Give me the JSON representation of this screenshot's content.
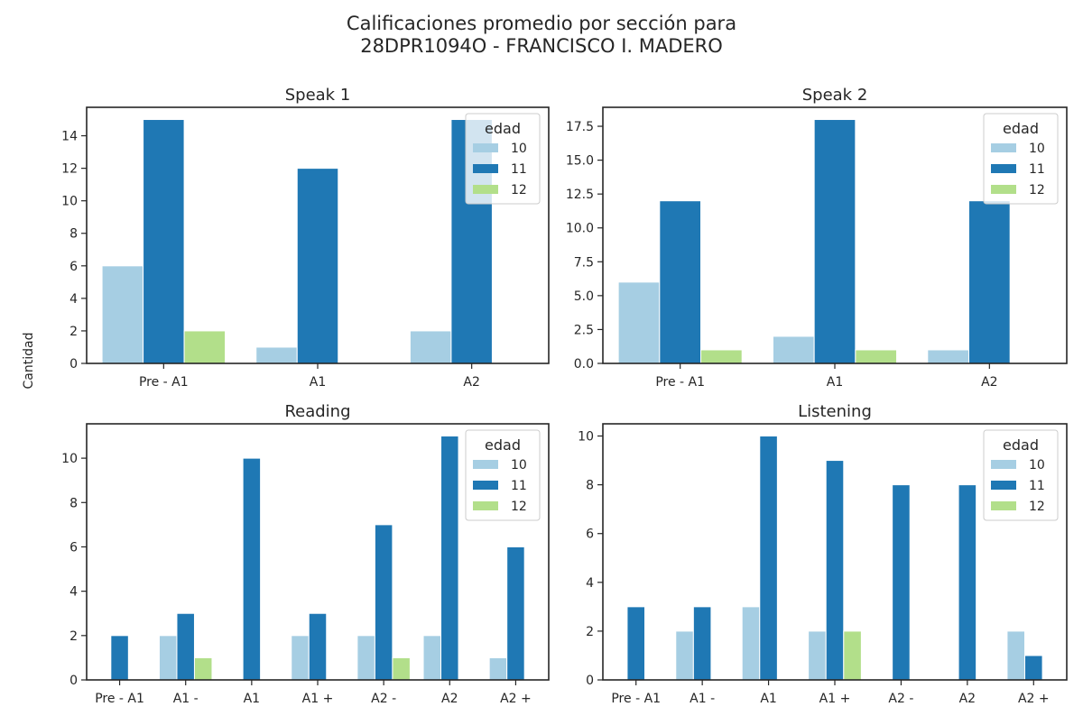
{
  "figure": {
    "title_line1": "Calificaciones promedio por sección para",
    "title_line2": "28DPR1094O - FRANCISCO I. MADERO",
    "ylabel": "Cantidad"
  },
  "colors": {
    "10": "#a6cee3",
    "11": "#1f78b4",
    "12": "#b2df8a"
  },
  "chart_data": [
    {
      "type": "bar",
      "title": "Speak 1",
      "categories": [
        "Pre - A1",
        "A1",
        "A2"
      ],
      "series": [
        {
          "name": "10",
          "values": [
            6,
            1,
            2
          ]
        },
        {
          "name": "11",
          "values": [
            15,
            12,
            15
          ]
        },
        {
          "name": "12",
          "values": [
            2,
            0,
            0
          ]
        }
      ],
      "ylim": [
        0,
        15.75
      ],
      "yticks": [
        0,
        2,
        4,
        6,
        8,
        10,
        12,
        14
      ],
      "legend_title": "edad",
      "legend_position": "top-right"
    },
    {
      "type": "bar",
      "title": "Speak 2",
      "categories": [
        "Pre - A1",
        "A1",
        "A2"
      ],
      "series": [
        {
          "name": "10",
          "values": [
            6,
            2,
            1
          ]
        },
        {
          "name": "11",
          "values": [
            12,
            18,
            12
          ]
        },
        {
          "name": "12",
          "values": [
            1,
            1,
            0
          ]
        }
      ],
      "ylim": [
        0,
        18.9
      ],
      "yticks": [
        0.0,
        2.5,
        5.0,
        7.5,
        10.0,
        12.5,
        15.0,
        17.5
      ],
      "tick_decimals": 1,
      "legend_title": "edad",
      "legend_position": "top-right"
    },
    {
      "type": "bar",
      "title": "Reading",
      "categories": [
        "Pre - A1",
        "A1 -",
        "A1",
        "A1 +",
        "A2 -",
        "A2",
        "A2 +"
      ],
      "series": [
        {
          "name": "10",
          "values": [
            0,
            2,
            0,
            2,
            2,
            2,
            1
          ]
        },
        {
          "name": "11",
          "values": [
            2,
            3,
            10,
            3,
            7,
            11,
            6
          ]
        },
        {
          "name": "12",
          "values": [
            0,
            1,
            0,
            0,
            1,
            0,
            0
          ]
        }
      ],
      "ylim": [
        0,
        11.55
      ],
      "yticks": [
        0,
        2,
        4,
        6,
        8,
        10
      ],
      "legend_title": "edad",
      "legend_position": "top-right"
    },
    {
      "type": "bar",
      "title": "Listening",
      "categories": [
        "Pre - A1",
        "A1 -",
        "A1",
        "A1 +",
        "A2 -",
        "A2",
        "A2 +"
      ],
      "series": [
        {
          "name": "10",
          "values": [
            0,
            2,
            3,
            2,
            0,
            0,
            2
          ]
        },
        {
          "name": "11",
          "values": [
            3,
            3,
            10,
            9,
            8,
            8,
            1
          ]
        },
        {
          "name": "12",
          "values": [
            0,
            0,
            0,
            2,
            0,
            0,
            0
          ]
        }
      ],
      "ylim": [
        0,
        10.5
      ],
      "yticks": [
        0,
        2,
        4,
        6,
        8,
        10
      ],
      "legend_title": "edad",
      "legend_position": "top-right"
    }
  ]
}
